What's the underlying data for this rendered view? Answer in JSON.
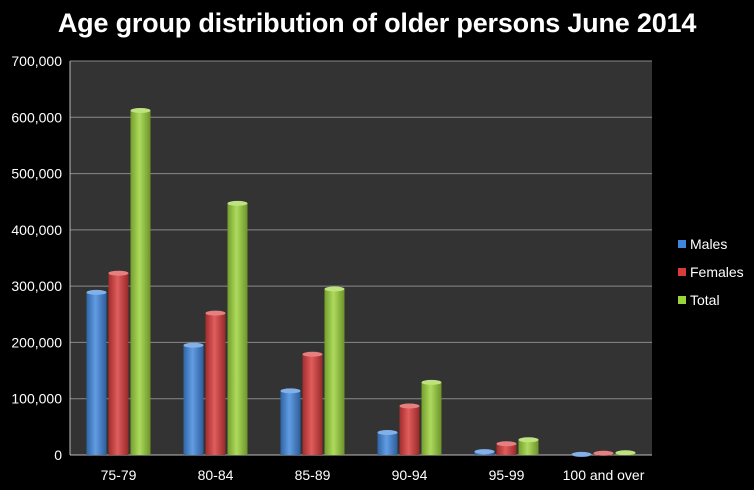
{
  "chart_data": {
    "type": "bar",
    "title": "Age group distribution of older persons June 2014",
    "categories": [
      "75-79",
      "80-84",
      "85-89",
      "90-94",
      "95-99",
      "100 and over"
    ],
    "series": [
      {
        "name": "Males",
        "color": "#3f86dd",
        "values": [
          289000,
          195000,
          114000,
          40000,
          6000,
          1000
        ]
      },
      {
        "name": "Females",
        "color": "#d93a3a",
        "values": [
          323000,
          252000,
          179000,
          87000,
          20000,
          3000
        ]
      },
      {
        "name": "Total",
        "color": "#9bd33a",
        "values": [
          612000,
          447000,
          295000,
          129000,
          27000,
          4000
        ]
      }
    ],
    "ylim": [
      0,
      700000
    ],
    "yticks": [
      "0",
      "100,000",
      "200,000",
      "300,000",
      "400,000",
      "500,000",
      "600,000",
      "700,000"
    ],
    "xlabel": "",
    "ylabel": "",
    "grid": true,
    "legend": "right",
    "plot_background": "#333333",
    "gridline_color": "#8a8a8a"
  }
}
